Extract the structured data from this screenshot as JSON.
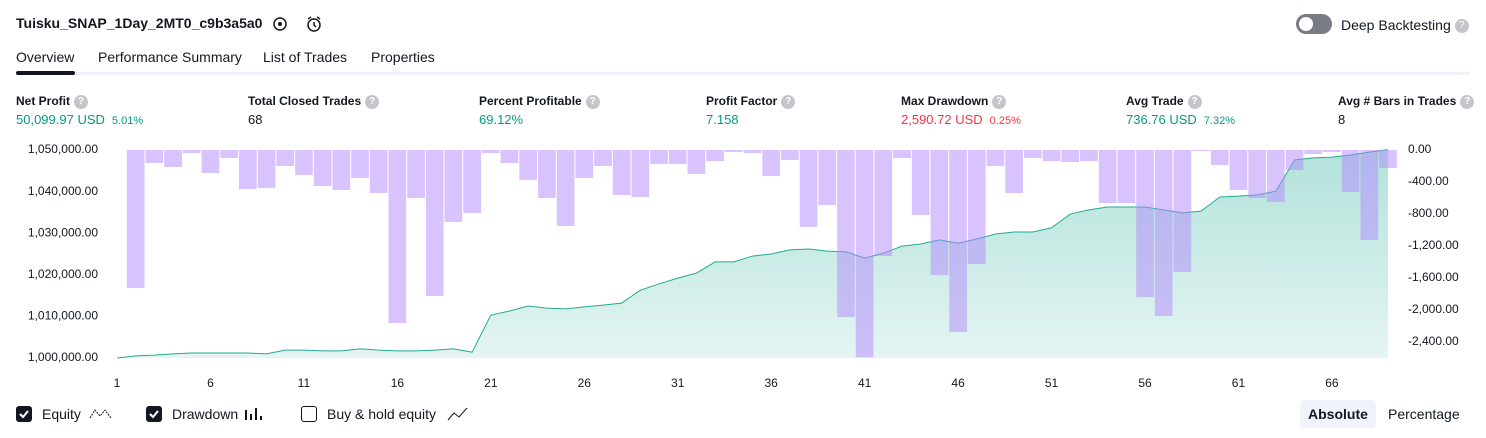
{
  "header": {
    "title": "Tuisku_SNAP_1Day_2MT0_c9b3a5a0",
    "deep_backtesting": "Deep Backtesting"
  },
  "tabs": [
    "Overview",
    "Performance Summary",
    "List of Trades",
    "Properties"
  ],
  "metrics": [
    {
      "label": "Net Profit",
      "value": "50,099.97 USD",
      "percent": "5.01%"
    },
    {
      "label": "Total Closed Trades",
      "value": "68"
    },
    {
      "label": "Percent Profitable",
      "value": "69.12%"
    },
    {
      "label": "Profit Factor",
      "value": "7.158"
    },
    {
      "label": "Max Drawdown",
      "value": "2,590.72 USD",
      "percent": "0.25%"
    },
    {
      "label": "Avg Trade",
      "value": "736.76 USD",
      "percent": "7.32%"
    },
    {
      "label": "Avg # Bars in Trades",
      "value": "8"
    }
  ],
  "chart_data": {
    "type": "combo",
    "x": [
      1,
      2,
      3,
      4,
      5,
      6,
      7,
      8,
      9,
      10,
      11,
      12,
      13,
      14,
      15,
      16,
      17,
      18,
      19,
      20,
      21,
      22,
      23,
      24,
      25,
      26,
      27,
      28,
      29,
      30,
      31,
      32,
      33,
      34,
      35,
      36,
      37,
      38,
      39,
      40,
      41,
      42,
      43,
      44,
      45,
      46,
      47,
      48,
      49,
      50,
      51,
      52,
      53,
      54,
      55,
      56,
      57,
      58,
      59,
      60,
      61,
      62,
      63,
      64,
      65,
      66,
      67,
      68,
      69
    ],
    "xlim": [
      1,
      69
    ],
    "xticks": [
      1,
      6,
      11,
      16,
      21,
      26,
      31,
      36,
      41,
      46,
      51,
      56,
      61,
      66
    ],
    "ylim": [
      1000000,
      1050000
    ],
    "yticks": [
      {
        "value": 1000000,
        "label": "1,000,000.00"
      },
      {
        "value": 1010000,
        "label": "1,010,000.00"
      },
      {
        "value": 1020000,
        "label": "1,020,000.00"
      },
      {
        "value": 1030000,
        "label": "1,030,000.00"
      },
      {
        "value": 1040000,
        "label": "1,040,000.00"
      },
      {
        "value": 1050000,
        "label": "1,050,000.00"
      }
    ],
    "y2lim": [
      -2600,
      0
    ],
    "y2ticks": [
      {
        "value": 0,
        "label": "0.00"
      },
      {
        "value": -400,
        "label": "-400.00"
      },
      {
        "value": -800,
        "label": "-800.00"
      },
      {
        "value": -1200,
        "label": "-1,200.00"
      },
      {
        "value": -1600,
        "label": "-1,600.00"
      },
      {
        "value": -2000,
        "label": "-2,000.00"
      },
      {
        "value": -2400,
        "label": "-2,400.00"
      }
    ],
    "series": [
      {
        "name": "Equity",
        "color": "#22ab94",
        "values": [
          1000000,
          1000500,
          1000700,
          1001000,
          1001200,
          1001200,
          1001200,
          1001200,
          1001000,
          1001900,
          1001900,
          1001700,
          1001700,
          1002200,
          1001900,
          1001700,
          1001700,
          1001900,
          1002200,
          1001400,
          1010300,
          1011300,
          1012500,
          1012000,
          1011800,
          1012300,
          1012700,
          1013200,
          1016300,
          1017800,
          1019200,
          1020400,
          1023100,
          1023100,
          1024500,
          1025000,
          1026000,
          1026200,
          1025700,
          1025500,
          1024000,
          1025200,
          1026900,
          1027400,
          1028400,
          1027600,
          1028600,
          1029800,
          1030300,
          1030300,
          1031300,
          1034600,
          1035600,
          1036300,
          1036300,
          1036300,
          1035600,
          1034900,
          1035300,
          1038700,
          1038900,
          1039200,
          1040100,
          1047600,
          1048100,
          1048300,
          1048800,
          1049500,
          1050100
        ]
      },
      {
        "name": "Drawdown",
        "color": "#b388ff",
        "axis": "y2",
        "values": [
          0,
          -1725,
          -163,
          -213,
          -38,
          -288,
          -100,
          -488,
          -475,
          -200,
          -313,
          -450,
          -500,
          -350,
          -538,
          -2163,
          -600,
          -1825,
          -900,
          -788,
          -38,
          -163,
          -375,
          -600,
          -950,
          -350,
          -200,
          -563,
          -588,
          -175,
          -175,
          -300,
          -138,
          -25,
          -38,
          -325,
          -125,
          -963,
          -688,
          -2088,
          -2591,
          -1325,
          -100,
          -813,
          -1563,
          -2275,
          -1425,
          -200,
          -538,
          -100,
          -138,
          -150,
          -138,
          -663,
          -663,
          -1838,
          -2075,
          -1525,
          -13,
          -188,
          -500,
          -600,
          -650,
          -250,
          -50,
          -25,
          -525,
          -1125,
          -225
        ]
      }
    ]
  },
  "chart_controls": {
    "buy_hold": {
      "label": "Buy & hold equity",
      "checked": false
    },
    "modes": [
      "Absolute",
      "Percentage"
    ]
  }
}
